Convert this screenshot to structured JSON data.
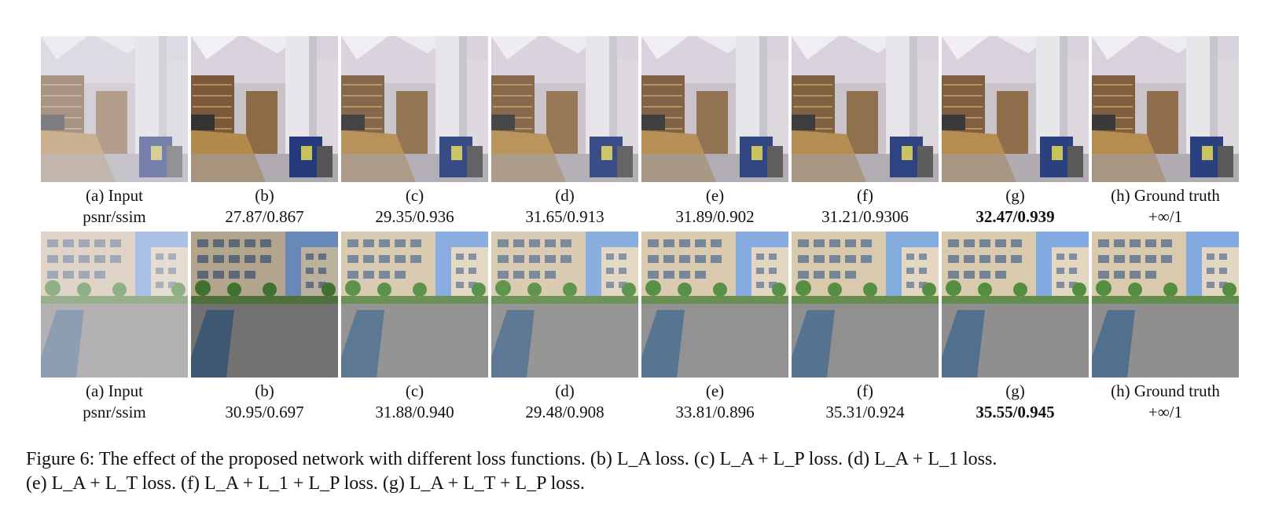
{
  "rows": [
    {
      "scene": "library",
      "captions": [
        {
          "label": "(a) Input",
          "metric": "psnr/ssim",
          "best": false
        },
        {
          "label": "(b)",
          "metric": "27.87/0.867",
          "best": false
        },
        {
          "label": "(c)",
          "metric": "29.35/0.936",
          "best": false
        },
        {
          "label": "(d)",
          "metric": "31.65/0.913",
          "best": false
        },
        {
          "label": "(e)",
          "metric": "31.89/0.902",
          "best": false
        },
        {
          "label": "(f)",
          "metric": "31.21/0.9306",
          "best": false
        },
        {
          "label": "(g)",
          "metric": "32.47/0.939",
          "best": true
        },
        {
          "label": "(h) Ground truth",
          "metric": "+∞/1",
          "best": false
        }
      ]
    },
    {
      "scene": "campus",
      "captions": [
        {
          "label": "(a) Input",
          "metric": "psnr/ssim",
          "best": false
        },
        {
          "label": "(b)",
          "metric": "30.95/0.697",
          "best": false
        },
        {
          "label": "(c)",
          "metric": "31.88/0.940",
          "best": false
        },
        {
          "label": "(d)",
          "metric": "29.48/0.908",
          "best": false
        },
        {
          "label": "(e)",
          "metric": "33.81/0.896",
          "best": false
        },
        {
          "label": "(f)",
          "metric": "35.31/0.924",
          "best": false
        },
        {
          "label": "(g)",
          "metric": "35.55/0.945",
          "best": true
        },
        {
          "label": "(h) Ground truth",
          "metric": "+∞/1",
          "best": false
        }
      ]
    }
  ],
  "figure_caption": {
    "line1": "Figure 6: The effect of the proposed network with different loss functions. (b) L_A loss. (c) L_A + L_P loss. (d) L_A + L_1 loss.",
    "line2": "(e) L_A + L_T loss. (f) L_A + L_1 + L_P loss. (g) L_A + L_T + L_P loss."
  }
}
